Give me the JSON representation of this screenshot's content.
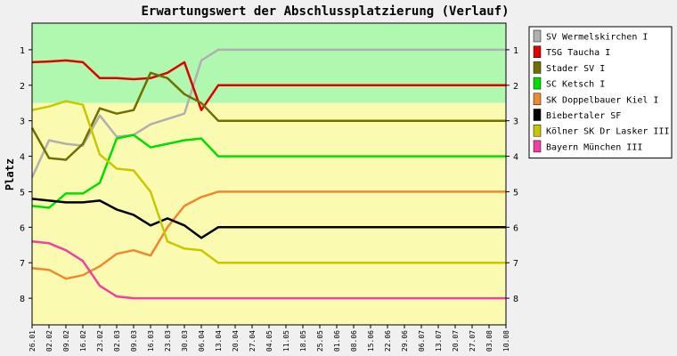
{
  "chart_data": {
    "type": "line",
    "title": "Erwartungswert der Abschlussplatzierung (Verlauf)",
    "ylabel": "Platz",
    "xlabel": "",
    "ylim": [
      0.25,
      8.75
    ],
    "y_inverted": true,
    "yticks": [
      1,
      2,
      3,
      4,
      5,
      6,
      7,
      8
    ],
    "grid": false,
    "legend_position": "right",
    "bands": [
      {
        "from": 0.25,
        "to": 2.5,
        "color": "#b0f8b0"
      },
      {
        "from": 2.5,
        "to": 8.75,
        "color": "#fafab0"
      }
    ],
    "x": [
      "26.01",
      "02.02",
      "09.02",
      "16.02",
      "23.02",
      "02.03",
      "09.03",
      "16.03",
      "23.03",
      "30.03",
      "06.04",
      "13.04",
      "20.04",
      "27.04",
      "04.05",
      "11.05",
      "18.05",
      "25.05",
      "01.06",
      "08.06",
      "15.06",
      "22.06",
      "29.06",
      "06.07",
      "13.07",
      "20.07",
      "27.07",
      "03.08",
      "10.08"
    ],
    "series": [
      {
        "name": "SV Wermelskirchen I",
        "color": "#b0b0b0",
        "values": [
          4.6,
          3.55,
          3.65,
          3.7,
          2.85,
          3.45,
          3.4,
          3.1,
          2.95,
          2.8,
          1.3,
          1,
          1,
          1,
          1,
          1,
          1,
          1,
          1,
          1,
          1,
          1,
          1,
          1,
          1,
          1,
          1,
          1,
          1
        ]
      },
      {
        "name": "TSG Taucha I",
        "color": "#e00000",
        "values": [
          1.35,
          1.33,
          1.3,
          1.35,
          1.8,
          1.8,
          1.83,
          1.8,
          1.65,
          1.35,
          2.7,
          2,
          2,
          2,
          2,
          2,
          2,
          2,
          2,
          2,
          2,
          2,
          2,
          2,
          2,
          2,
          2,
          2,
          2
        ]
      },
      {
        "name": "Stader SV I",
        "color": "#707000",
        "values": [
          3.2,
          4.05,
          4.1,
          3.65,
          2.65,
          2.8,
          2.7,
          1.65,
          1.8,
          2.25,
          2.5,
          3,
          3,
          3,
          3,
          3,
          3,
          3,
          3,
          3,
          3,
          3,
          3,
          3,
          3,
          3,
          3,
          3,
          3
        ]
      },
      {
        "name": "SC Ketsch I",
        "color": "#00e000",
        "values": [
          5.4,
          5.45,
          5.05,
          5.05,
          4.75,
          3.5,
          3.4,
          3.75,
          3.65,
          3.55,
          3.5,
          4,
          4,
          4,
          4,
          4,
          4,
          4,
          4,
          4,
          4,
          4,
          4,
          4,
          4,
          4,
          4,
          4,
          4
        ]
      },
      {
        "name": "SK Doppelbauer Kiel I",
        "color": "#f08830",
        "values": [
          7.15,
          7.2,
          7.45,
          7.35,
          7.1,
          6.75,
          6.65,
          6.8,
          6,
          5.4,
          5.15,
          5,
          5,
          5,
          5,
          5,
          5,
          5,
          5,
          5,
          5,
          5,
          5,
          5,
          5,
          5,
          5,
          5,
          5
        ]
      },
      {
        "name": "Biebertaler SF",
        "color": "#000000",
        "values": [
          5.2,
          5.25,
          5.3,
          5.3,
          5.25,
          5.5,
          5.65,
          5.95,
          5.75,
          5.95,
          6.3,
          6,
          6,
          6,
          6,
          6,
          6,
          6,
          6,
          6,
          6,
          6,
          6,
          6,
          6,
          6,
          6,
          6,
          6
        ]
      },
      {
        "name": "Kölner SK Dr Lasker III",
        "color": "#c8c800",
        "values": [
          2.7,
          2.6,
          2.45,
          2.55,
          3.95,
          4.35,
          4.4,
          5,
          6.4,
          6.6,
          6.65,
          7,
          7,
          7,
          7,
          7,
          7,
          7,
          7,
          7,
          7,
          7,
          7,
          7,
          7,
          7,
          7,
          7,
          7
        ]
      },
      {
        "name": "Bayern München III",
        "color": "#f040a0",
        "values": [
          6.4,
          6.45,
          6.65,
          6.95,
          7.65,
          7.95,
          8,
          8,
          8,
          8,
          8,
          8,
          8,
          8,
          8,
          8,
          8,
          8,
          8,
          8,
          8,
          8,
          8,
          8,
          8,
          8,
          8,
          8,
          8
        ]
      }
    ]
  }
}
